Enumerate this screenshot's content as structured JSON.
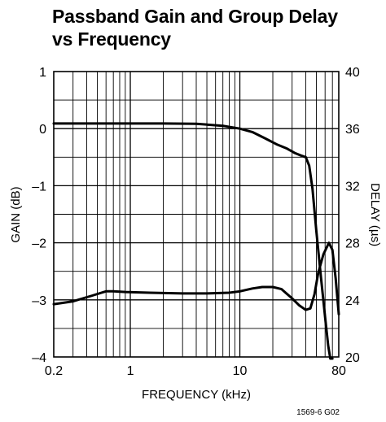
{
  "chart_data": {
    "type": "line",
    "title": [
      "Passband Gain and Group Delay",
      "vs Frequency"
    ],
    "xlabel": "FREQUENCY (kHz)",
    "ylabel_left": "GAIN (dB)",
    "ylabel_right": "DELAY (µs)",
    "x_scale": "log",
    "xlim": [
      0.2,
      80
    ],
    "ylim_left": [
      -4,
      1
    ],
    "ylim_right": [
      20,
      40
    ],
    "grid": true,
    "x_tick_labels": [
      {
        "value": 0.2,
        "label": "0.2"
      },
      {
        "value": 1,
        "label": "1"
      },
      {
        "value": 10,
        "label": "10"
      },
      {
        "value": 80,
        "label": "80"
      }
    ],
    "y_left_tick_labels": [
      {
        "value": 1,
        "label": "1"
      },
      {
        "value": 0,
        "label": "0"
      },
      {
        "value": -1,
        "label": "–1"
      },
      {
        "value": -2,
        "label": "–2"
      },
      {
        "value": -3,
        "label": "–3"
      },
      {
        "value": -4,
        "label": "–4"
      }
    ],
    "y_right_tick_labels": [
      {
        "value": 40,
        "label": "40"
      },
      {
        "value": 36,
        "label": "36"
      },
      {
        "value": 32,
        "label": "32"
      },
      {
        "value": 28,
        "label": "28"
      },
      {
        "value": 24,
        "label": "24"
      },
      {
        "value": 20,
        "label": "20"
      }
    ],
    "series": [
      {
        "axis": "left",
        "x": [
          0.2,
          0.5,
          1,
          2,
          4,
          7,
          10,
          13,
          17,
          22,
          27,
          32,
          36,
          40,
          43,
          46,
          50,
          55,
          60,
          64,
          67,
          70
        ],
        "y": [
          0.09,
          0.09,
          0.09,
          0.09,
          0.085,
          0.05,
          0.0,
          -0.06,
          -0.17,
          -0.28,
          -0.35,
          -0.43,
          -0.47,
          -0.5,
          -0.65,
          -1.05,
          -1.8,
          -2.6,
          -3.3,
          -3.8,
          -4.05,
          -4.1
        ]
      },
      {
        "axis": "right",
        "x": [
          0.2,
          0.3,
          0.45,
          0.6,
          0.7,
          0.9,
          1.5,
          3,
          5,
          8,
          10,
          13,
          16,
          20,
          24,
          30,
          35,
          40,
          44,
          48,
          52,
          58,
          65,
          70,
          75,
          80
        ],
        "y": [
          23.7,
          23.9,
          24.3,
          24.6,
          24.6,
          24.55,
          24.5,
          24.45,
          24.45,
          24.5,
          24.6,
          24.8,
          24.9,
          24.9,
          24.75,
          24.1,
          23.6,
          23.3,
          23.4,
          24.4,
          25.9,
          27.2,
          28.0,
          27.5,
          25.5,
          23.0
        ]
      }
    ],
    "annotation": "1569-6 G02"
  }
}
